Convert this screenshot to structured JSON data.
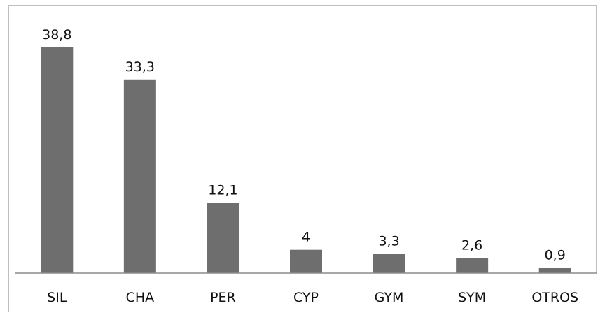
{
  "chart_data": {
    "type": "bar",
    "categories": [
      "SIL",
      "CHA",
      "PER",
      "CYP",
      "GYM",
      "SYM",
      "OTROS"
    ],
    "value_labels": [
      "38,8",
      "33,3",
      "12,1",
      "4",
      "3,3",
      "2,6",
      "0,9"
    ],
    "values": [
      38.8,
      33.3,
      12.1,
      4,
      3.3,
      2.6,
      0.9
    ],
    "ylim": [
      0,
      38.8
    ],
    "grid": false,
    "colors": {
      "bar": "#6e6e6e",
      "axis": "#8c8c8c",
      "frame": "#7f7f7f",
      "text": "#111111"
    }
  }
}
